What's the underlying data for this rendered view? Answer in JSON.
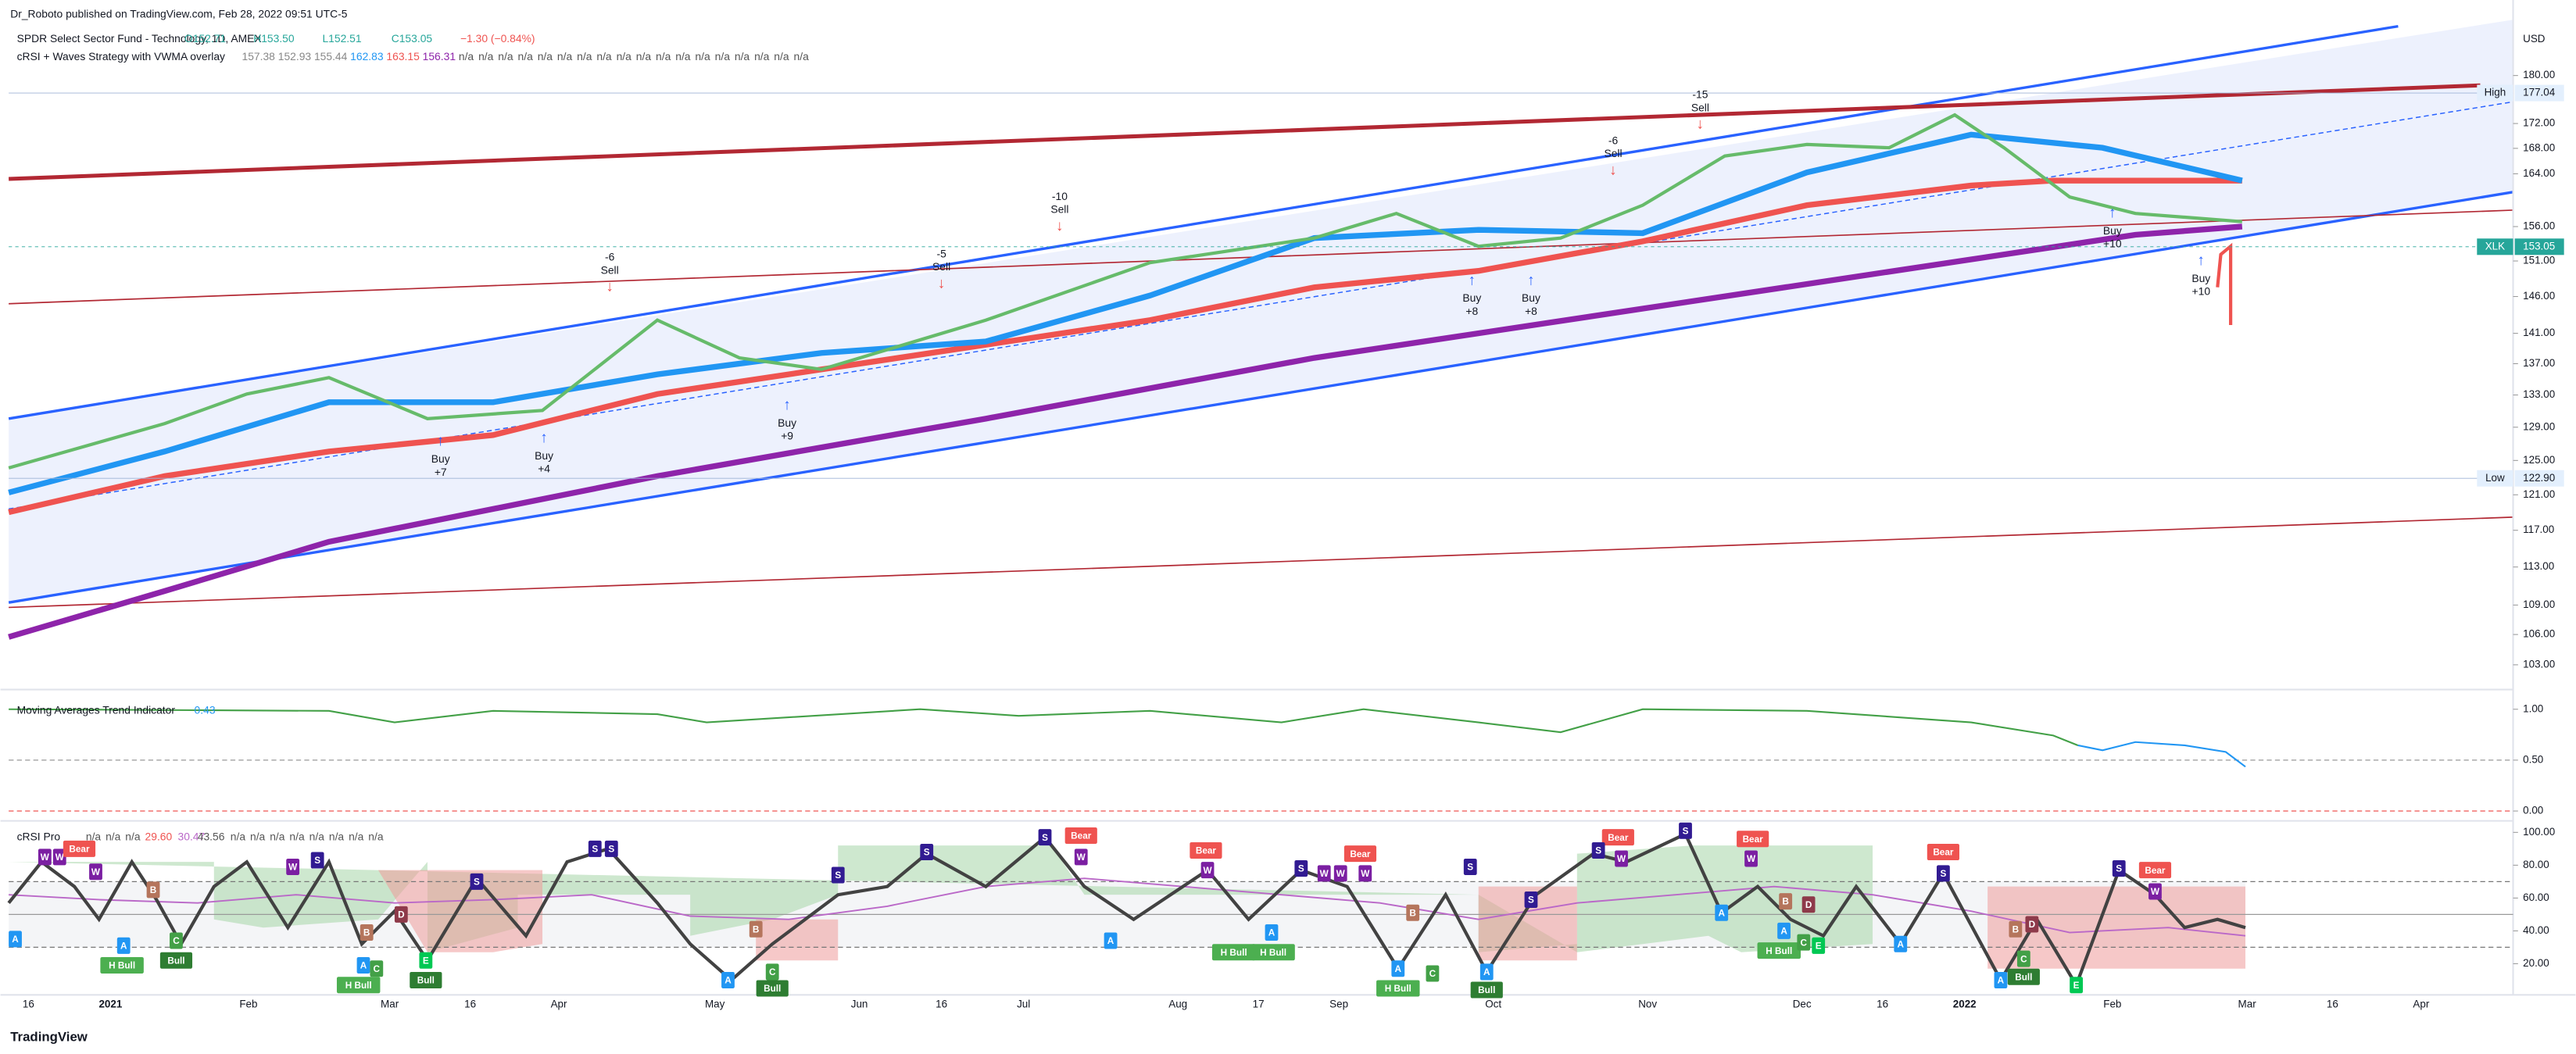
{
  "header": {
    "publisher": "Dr_Roboto published on TradingView.com, Feb 28, 2022 09:51 UTC-5",
    "symbol": "SPDR Select Sector Fund - Technology, 1D, AMEX",
    "quote": [
      "O152.71",
      "H153.50",
      "L152.51",
      "C153.05",
      "−1.30 (−0.84%)"
    ],
    "overlay": "cRSI + Waves Strategy with VWMA overlay",
    "overlay_values": [
      "157.38",
      "152.93",
      "155.44",
      "162.83",
      "163.15",
      "156.31",
      "n/a",
      "n/a",
      "n/a",
      "n/a",
      "n/a",
      "n/a",
      "n/a",
      "n/a",
      "n/a",
      "n/a",
      "n/a",
      "n/a",
      "n/a",
      "n/a",
      "n/a",
      "n/a",
      "n/a",
      "n/a"
    ]
  },
  "price_axis": {
    "unit": "USD",
    "ticks": [
      {
        "value": 180,
        "label": "180.00"
      },
      {
        "value": 172,
        "label": "172.00"
      },
      {
        "value": 168,
        "label": "168.00"
      },
      {
        "value": 164,
        "label": "164.00"
      },
      {
        "value": 156,
        "label": "156.00"
      },
      {
        "value": 151,
        "label": "151.00"
      },
      {
        "value": 146,
        "label": "146.00"
      },
      {
        "value": 141,
        "label": "141.00"
      },
      {
        "value": 137,
        "label": "137.00"
      },
      {
        "value": 133,
        "label": "133.00"
      },
      {
        "value": 129,
        "label": "129.00"
      },
      {
        "value": 125,
        "label": "125.00"
      },
      {
        "value": 121,
        "label": "121.00"
      },
      {
        "value": 117,
        "label": "117.00"
      },
      {
        "value": 113,
        "label": "113.00"
      },
      {
        "value": 109,
        "label": "109.00"
      },
      {
        "value": 106,
        "label": "106.00"
      },
      {
        "value": 103,
        "label": "103.00"
      }
    ],
    "markers": [
      {
        "name": "High",
        "value": 177.04
      },
      {
        "name": "XLK",
        "value": 153.05
      },
      {
        "name": "Low",
        "value": {
          "value": 122.9,
          "label": "122.90"
        }
      }
    ]
  },
  "annotations": [
    {
      "count": "-6",
      "action": "Sell"
    },
    {
      "action": "Buy",
      "count": "+7"
    },
    {
      "action": "Buy",
      "count": "+4"
    },
    {
      "action": "Buy",
      "count": "+9"
    },
    {
      "count": "-5",
      "action": "Sell"
    },
    {
      "count": "-10",
      "action": "Sell"
    },
    {
      "action": "Buy",
      "count": "+8"
    },
    {
      "action": "Buy",
      "count": "+8"
    },
    {
      "count": "-6",
      "action": "Sell"
    },
    {
      "count": "-15",
      "action": "Sell"
    },
    {
      "action": "Buy",
      "count": "+10"
    },
    {
      "action": "Buy",
      "count": "+10"
    }
  ],
  "trend_panel": {
    "title": "Moving Averages Trend Indicator",
    "value": "0.43",
    "ticks": [
      {
        "value": 1,
        "label": "1.00"
      },
      {
        "value": 0.5,
        "label": "0.50"
      },
      {
        "value": 0,
        "label": "0.00"
      }
    ]
  },
  "crsi_panel": {
    "title": "cRSI Pro",
    "values": [
      "n/a",
      "n/a",
      "n/a",
      "29.60",
      "30.47",
      "43.56",
      "n/a",
      "n/a",
      "n/a",
      "n/a",
      "n/a",
      "n/a",
      "n/a",
      "n/a"
    ],
    "ticks": [
      {
        "value": 100,
        "label": "100.00"
      },
      {
        "value": 80,
        "label": "80.00"
      },
      {
        "value": 60,
        "label": "60.00"
      },
      {
        "value": 40,
        "label": "40.00"
      },
      {
        "value": 20,
        "label": "20.00"
      }
    ],
    "signals": [
      "W",
      "W",
      "Bear",
      "W",
      "A",
      "B",
      "A",
      "H Bull",
      "C",
      "Bull",
      "W",
      "S",
      "B",
      "D",
      "A",
      "C",
      "H Bull",
      "E",
      "Bull",
      "S",
      "S",
      "S",
      "A",
      "B",
      "C",
      "Bull",
      "S",
      "S",
      "S",
      "Bear",
      "W",
      "A",
      "Bear",
      "W",
      "S",
      "W",
      "W",
      "Bear",
      "W",
      "A",
      "H Bull",
      "H Bull",
      "B",
      "A",
      "H Bull",
      "C",
      "S",
      "A",
      "Bull",
      "S",
      "Bear",
      "S",
      "W",
      "S",
      "Bear",
      "W",
      "A",
      "B",
      "D",
      "A",
      "H Bull",
      "C",
      "E",
      "A",
      "Bear",
      "S",
      "B",
      "D",
      "A",
      "C",
      "Bull",
      "E",
      "S",
      "Bear",
      "W"
    ]
  },
  "time_axis": [
    "16",
    "2021",
    "Feb",
    "Mar",
    "16",
    "Apr",
    "May",
    "Jun",
    "16",
    "Jul",
    "Aug",
    "17",
    "Sep",
    "Oct",
    "Nov",
    "Dec",
    "16",
    "2022",
    "Feb",
    "Mar",
    "16",
    "Apr"
  ],
  "footer": "TradingView"
}
